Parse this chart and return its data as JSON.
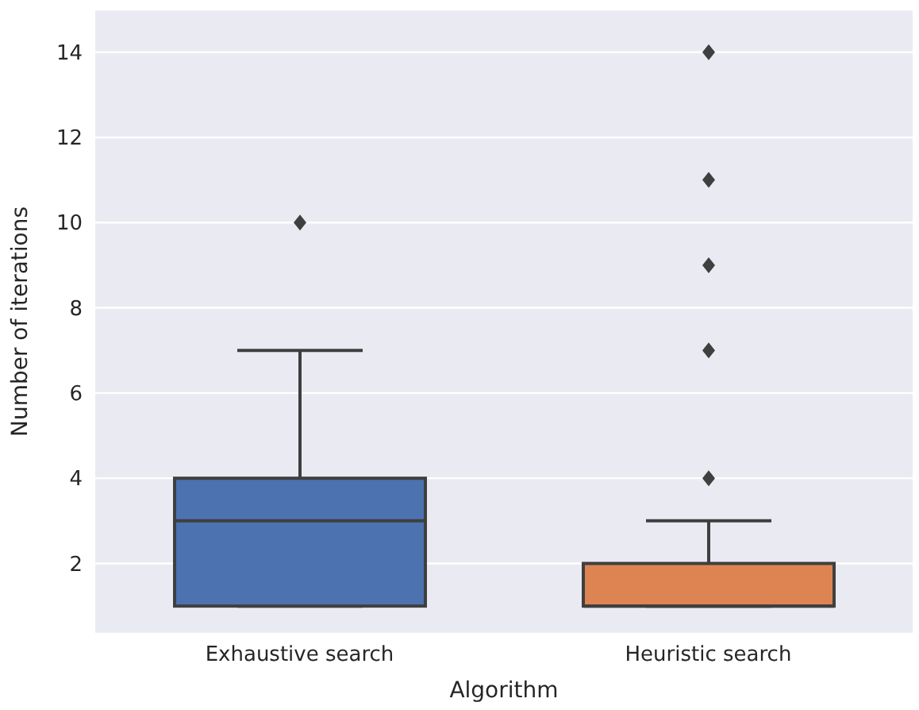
{
  "chart_data": {
    "type": "box",
    "xlabel": "Algorithm",
    "ylabel": "Number of iterations",
    "categories": [
      "Exhaustive search",
      "Heuristic search"
    ],
    "colors": [
      "#4c72b0",
      "#dd8452"
    ],
    "boxes": [
      {
        "low": 1,
        "q1": 1,
        "median": 3,
        "q3": 4,
        "high": 7,
        "outliers": [
          10
        ]
      },
      {
        "low": 1,
        "q1": 1,
        "median": 1,
        "q3": 2,
        "high": 3,
        "outliers": [
          4,
          7,
          9,
          11,
          14
        ]
      }
    ],
    "ylim": [
      0.35,
      15
    ],
    "yticks": [
      2,
      4,
      6,
      8,
      10,
      12,
      14
    ],
    "grid": "y"
  }
}
